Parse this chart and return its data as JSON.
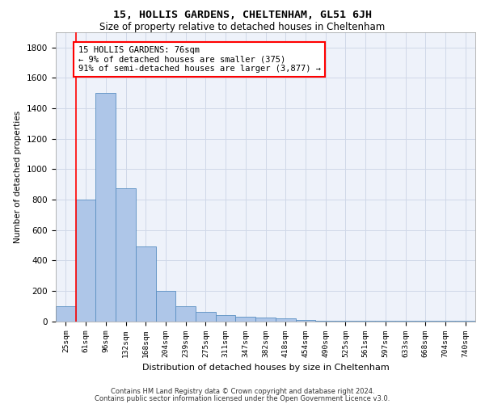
{
  "title_line1": "15, HOLLIS GARDENS, CHELTENHAM, GL51 6JH",
  "title_line2": "Size of property relative to detached houses in Cheltenham",
  "xlabel": "Distribution of detached houses by size in Cheltenham",
  "ylabel": "Number of detached properties",
  "categories": [
    "25sqm",
    "61sqm",
    "96sqm",
    "132sqm",
    "168sqm",
    "204sqm",
    "239sqm",
    "275sqm",
    "311sqm",
    "347sqm",
    "382sqm",
    "418sqm",
    "454sqm",
    "490sqm",
    "525sqm",
    "561sqm",
    "597sqm",
    "633sqm",
    "668sqm",
    "704sqm",
    "740sqm"
  ],
  "values": [
    100,
    800,
    1500,
    875,
    490,
    200,
    100,
    60,
    40,
    30,
    25,
    20,
    10,
    5,
    3,
    2,
    1,
    1,
    1,
    1,
    1
  ],
  "bar_color": "#aec6e8",
  "bar_edge_color": "#5a8fc2",
  "annotation_text": "15 HOLLIS GARDENS: 76sqm\n← 9% of detached houses are smaller (375)\n91% of semi-detached houses are larger (3,877) →",
  "annotation_box_color": "white",
  "annotation_box_edge": "red",
  "vline_x": 1,
  "vline_color": "red",
  "ylim": [
    0,
    1900
  ],
  "yticks": [
    0,
    200,
    400,
    600,
    800,
    1000,
    1200,
    1400,
    1600,
    1800
  ],
  "grid_color": "#d0d8e8",
  "background_color": "#eef2fa",
  "footer_line1": "Contains HM Land Registry data © Crown copyright and database right 2024.",
  "footer_line2": "Contains public sector information licensed under the Open Government Licence v3.0."
}
